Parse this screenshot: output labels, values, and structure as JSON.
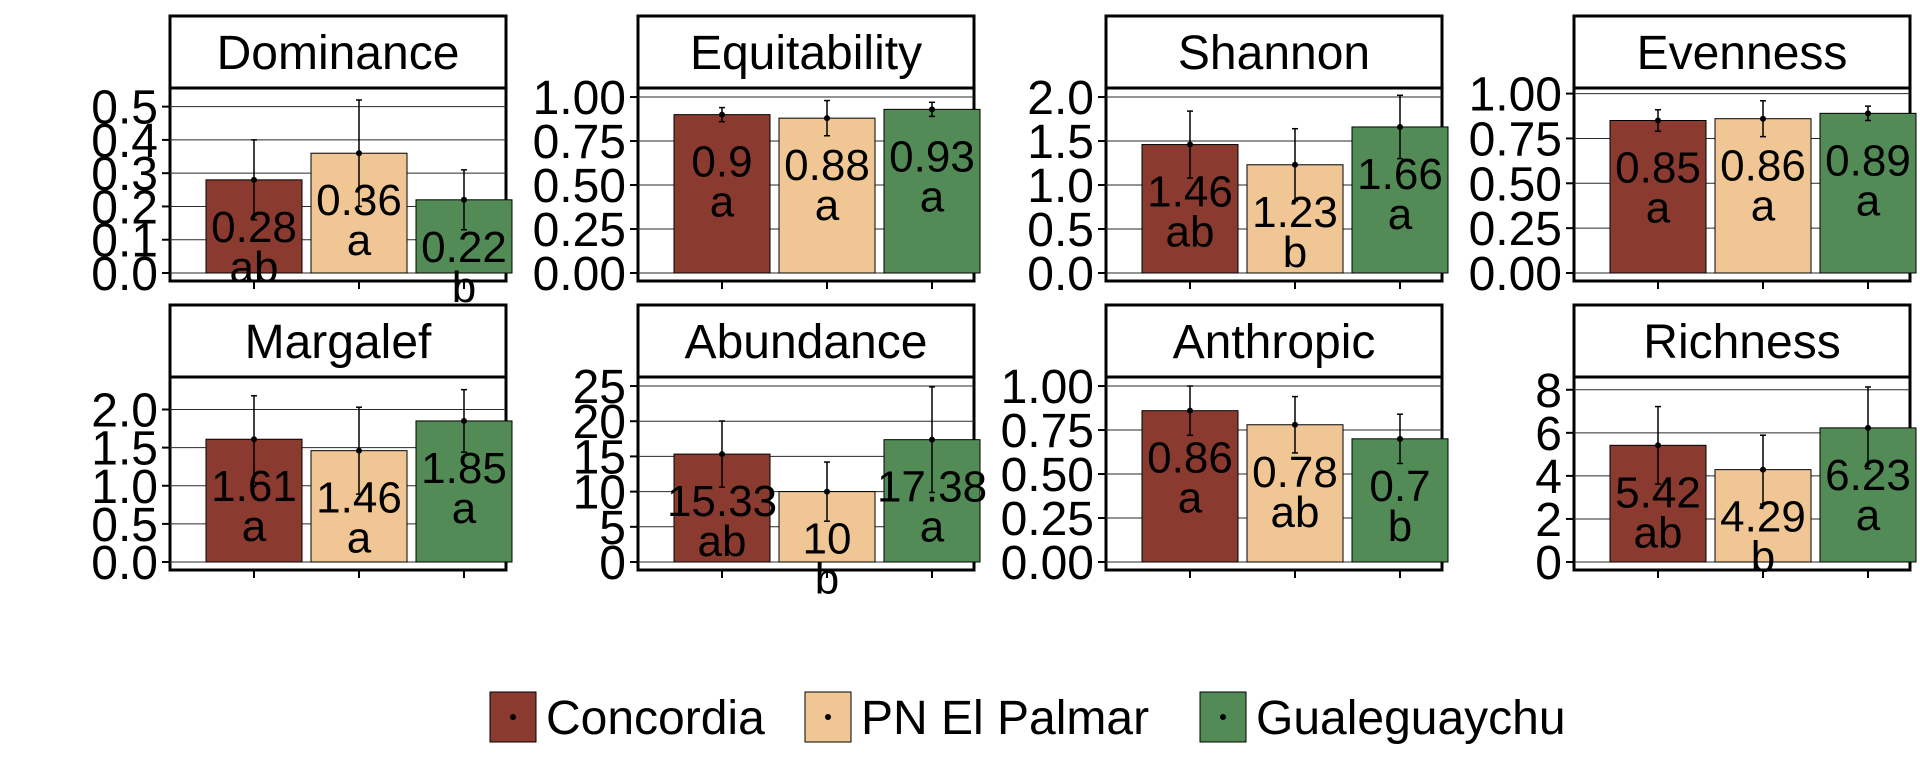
{
  "chart_data": {
    "type": "bar",
    "groups": [
      "Concordia",
      "PN El Palmar",
      "Gualeguaychu"
    ],
    "colors": {
      "Concordia": "#8B3A2F",
      "PN El Palmar": "#F0C794",
      "Gualeguaychu": "#528B55"
    },
    "grid": true,
    "legend": {
      "position": "bottom",
      "entries": [
        "Concordia",
        "PN El Palmar",
        "Gualeguaychu"
      ]
    },
    "panels": [
      {
        "title": "Dominance",
        "ylim": [
          0,
          0.55
        ],
        "yticks": [
          "0.0",
          "0.1",
          "0.2",
          "0.3",
          "0.4",
          "0.5"
        ],
        "ytick_values": [
          0,
          0.1,
          0.2,
          0.3,
          0.4,
          0.5
        ],
        "values": [
          0.28,
          0.36,
          0.22
        ],
        "errors": [
          0.12,
          0.16,
          0.09
        ],
        "value_labels": [
          "0.28",
          "0.36",
          "0.22"
        ],
        "letters": [
          "ab",
          "a",
          "b"
        ]
      },
      {
        "title": "Equitability",
        "ylim": [
          0,
          1.04
        ],
        "yticks": [
          "0.00",
          "0.25",
          "0.50",
          "0.75",
          "1.00"
        ],
        "ytick_values": [
          0,
          0.25,
          0.5,
          0.75,
          1.0
        ],
        "values": [
          0.9,
          0.88,
          0.93
        ],
        "errors": [
          0.04,
          0.1,
          0.04
        ],
        "value_labels": [
          "0.9",
          "0.88",
          "0.93"
        ],
        "letters": [
          "a",
          "a",
          "a"
        ]
      },
      {
        "title": "Shannon",
        "ylim": [
          0,
          2.08
        ],
        "yticks": [
          "0.0",
          "0.5",
          "1.0",
          "1.5",
          "2.0"
        ],
        "ytick_values": [
          0,
          0.5,
          1.0,
          1.5,
          2.0
        ],
        "values": [
          1.46,
          1.23,
          1.66
        ],
        "errors": [
          0.38,
          0.41,
          0.36
        ],
        "value_labels": [
          "1.46",
          "1.23",
          "1.66"
        ],
        "letters": [
          "ab",
          "b",
          "a"
        ]
      },
      {
        "title": "Evenness",
        "ylim": [
          0,
          1.02
        ],
        "yticks": [
          "0.00",
          "0.25",
          "0.50",
          "0.75",
          "1.00"
        ],
        "ytick_values": [
          0,
          0.25,
          0.5,
          0.75,
          1.0
        ],
        "values": [
          0.85,
          0.86,
          0.89
        ],
        "errors": [
          0.06,
          0.1,
          0.04
        ],
        "value_labels": [
          "0.85",
          "0.86",
          "0.89"
        ],
        "letters": [
          "a",
          "a",
          "a"
        ]
      },
      {
        "title": "Margalef",
        "ylim": [
          0,
          2.4
        ],
        "yticks": [
          "0.0",
          "0.5",
          "1.0",
          "1.5",
          "2.0"
        ],
        "ytick_values": [
          0,
          0.5,
          1.0,
          1.5,
          2.0
        ],
        "values": [
          1.61,
          1.46,
          1.85
        ],
        "errors": [
          0.57,
          0.57,
          0.41
        ],
        "value_labels": [
          "1.61",
          "1.46",
          "1.85"
        ],
        "letters": [
          "a",
          "a",
          "a"
        ]
      },
      {
        "title": "Abundance",
        "ylim": [
          0,
          26
        ],
        "yticks": [
          "0",
          "5",
          "10",
          "15",
          "20",
          "25"
        ],
        "ytick_values": [
          0,
          5,
          10,
          15,
          20,
          25
        ],
        "values": [
          15.33,
          10,
          17.38
        ],
        "errors": [
          4.7,
          4.2,
          7.5
        ],
        "value_labels": [
          "15.33",
          "10",
          "17.38"
        ],
        "letters": [
          "ab",
          "b",
          "a"
        ]
      },
      {
        "title": "Anthropic",
        "ylim": [
          0,
          1.04
        ],
        "yticks": [
          "0.00",
          "0.25",
          "0.50",
          "0.75",
          "1.00"
        ],
        "ytick_values": [
          0,
          0.25,
          0.5,
          0.75,
          1.0
        ],
        "values": [
          0.86,
          0.78,
          0.7
        ],
        "errors": [
          0.14,
          0.16,
          0.14
        ],
        "value_labels": [
          "0.86",
          "0.78",
          "0.7"
        ],
        "letters": [
          "a",
          "ab",
          "b"
        ]
      },
      {
        "title": "Richness",
        "ylim": [
          0,
          8.5
        ],
        "yticks": [
          "0",
          "2",
          "4",
          "6",
          "8"
        ],
        "ytick_values": [
          0,
          2,
          4,
          6,
          8
        ],
        "values": [
          5.42,
          4.29,
          6.23
        ],
        "errors": [
          1.8,
          1.6,
          1.9
        ],
        "value_labels": [
          "5.42",
          "4.29",
          "6.23"
        ],
        "letters": [
          "ab",
          "b",
          "a"
        ]
      }
    ]
  }
}
